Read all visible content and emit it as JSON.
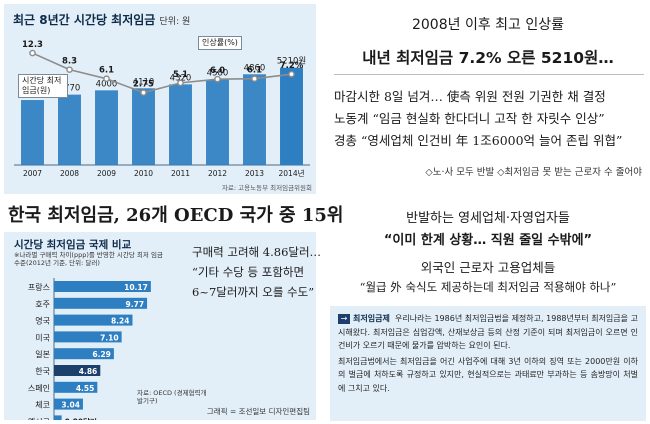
{
  "chart_data": [
    {
      "type": "bar",
      "title": "최근 8년간 시간당 최저임금",
      "unit_label": "단위: 원",
      "categories": [
        "2007",
        "2008",
        "2009",
        "2010",
        "2011",
        "2012",
        "2013",
        "2014년"
      ],
      "series": [
        {
          "name": "시간당 최저임금(원)",
          "values": [
            3480,
            3770,
            4000,
            4110,
            4320,
            4580,
            4860,
            5210
          ]
        },
        {
          "name": "인상률(%)",
          "type": "line",
          "values": [
            12.3,
            8.3,
            6.1,
            2.75,
            5.1,
            6.0,
            6.1,
            7.2
          ]
        }
      ],
      "value_labels": [
        "3480",
        "3770",
        "4000",
        "4110",
        "4320",
        "4580",
        "4860",
        "5210원"
      ],
      "rate_labels": [
        "12.3",
        "8.3",
        "6.1",
        "2.75",
        "5.1",
        "6.0",
        "6.1",
        "7.2%"
      ],
      "ylim": [
        0,
        6000
      ],
      "rate_ylim": [
        0,
        14
      ],
      "source": "자료: 고용노동부 최저임금위원회"
    },
    {
      "type": "bar",
      "orientation": "horizontal",
      "title": "시간당 최저임금 국제 비교",
      "subtitle": "※나라별 구매력 차이(ppp)를 반영한 시간당 최저 임금 수준(2012년 기준, 단위: 달러)",
      "categories": [
        "프랑스",
        "호주",
        "영국",
        "미국",
        "일본",
        "한국",
        "스페인",
        "체코",
        "멕시코"
      ],
      "values": [
        10.17,
        9.77,
        8.24,
        7.1,
        6.29,
        4.86,
        4.55,
        3.04,
        0.8
      ],
      "value_labels": [
        "10.17",
        "9.77",
        "8.24",
        "7.10",
        "6.29",
        "4.86",
        "4.55",
        "3.04",
        "0.80달러"
      ],
      "xlim": [
        0,
        10.5
      ],
      "source": "자료: OECD (경제협력개발기구)"
    }
  ],
  "top_right": {
    "headline1": "2008년 이후 최고 인상률",
    "headline2": "내년 최저임금 7.2% 오른 5210원…",
    "quotes": [
      "마감시한 8일 넘겨… 使측 위원 전원 기권한 채 결정",
      "노동계 “임금 현실화 한다더니 고작 한 자릿수 인상”",
      "경총 “영세업체 인건비 年 1조6000억 늘어 존립 위협”"
    ],
    "tags": "◇노·사 모두 반발   ◇최저임금 못 받는 근로자 수 줄어야"
  },
  "bottom_left": {
    "title": "한국 최저임금, 26개 OECD 국가 중 15위",
    "note_lines": [
      "구매력 고려해 4.86달러…",
      "“기타 수당 등 포함하면",
      "6~7달러까지 오를 수도”"
    ],
    "credit": "그래픽 = 조선일보 디자인편집팀"
  },
  "bottom_right": {
    "headline1": "반발하는 영세업체·자영업자들",
    "headline2": "“이미 한계 상황… 직원 줄일 수밖에”",
    "sub1": "외국인 근로자 고용업체들",
    "sub2": "“월급 外 숙식도 제공하는데   최저임금 적용해야 하나”",
    "definition": {
      "arrow": "→",
      "label": "최저임금제",
      "para1": "우리나라는 1986년 최저임금법을 제정하고, 1988년부터 최저임금을 고시해왔다. 최저임금은 심업감액, 산재보상금 등의 산정 기준이 되며 최저임금이 오르면 인건비가 오르기 때문에 물가를 압박하는 요인이 된다.",
      "para2": "최저임금법에서는 최저임금을 어긴 사업주에 대해 3년 이하의 징역 또는 2000만원 이하의 벌금에 처하도록 규정하고 있지만, 현실적으로는 과태료만 부과하는 등 솜방망이 처벌에 그치고 있다."
    }
  },
  "colors": {
    "panel_bg": "#e3eff8",
    "bar_blue": "#2e7fc1",
    "bar_highlight": "#1c3f6b",
    "line_gray": "#8c8c8c",
    "title_navy": "#0d2a4a"
  }
}
